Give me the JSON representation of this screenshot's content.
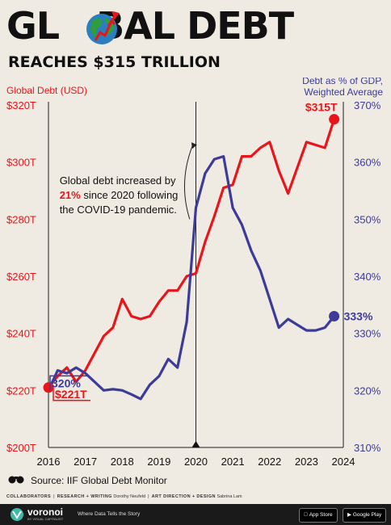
{
  "header": {
    "title_part1": "GL",
    "title_part2": "BAL DEBT",
    "subtitle": "REACHES $315 TRILLION"
  },
  "chart_data": {
    "type": "line",
    "left_axis_label": "Global Debt (USD)",
    "right_axis_label_line1": "Debt as % of GDP,",
    "right_axis_label_line2": "Weighted Average",
    "x_ticks": [
      "2016",
      "2017",
      "2018",
      "2019",
      "2020",
      "2021",
      "2022",
      "2023",
      "2024"
    ],
    "x_range": [
      2016,
      2024
    ],
    "left_ylim": [
      200,
      320
    ],
    "left_ticks": [
      "$200T",
      "$220T",
      "$240T",
      "$260T",
      "$280T",
      "$300T",
      "$320T"
    ],
    "left_tick_values": [
      200,
      220,
      240,
      260,
      280,
      300,
      320
    ],
    "right_ylim": [
      310,
      370
    ],
    "right_ticks": [
      "310%",
      "320%",
      "330%",
      "340%",
      "350%",
      "360%",
      "370%"
    ],
    "right_tick_values": [
      310,
      320,
      330,
      340,
      350,
      360,
      370
    ],
    "series": [
      {
        "axis": "left",
        "color": "#e8161b",
        "x": [
          2016.0,
          2016.25,
          2016.5,
          2016.75,
          2017.0,
          2017.25,
          2017.5,
          2017.75,
          2018.0,
          2018.25,
          2018.5,
          2018.75,
          2019.0,
          2019.25,
          2019.5,
          2019.75,
          2020.0,
          2020.25,
          2020.5,
          2020.75,
          2021.0,
          2021.25,
          2021.5,
          2021.75,
          2022.0,
          2022.25,
          2022.5,
          2022.75,
          2023.0,
          2023.25,
          2023.5,
          2023.75
        ],
        "values": [
          221,
          225,
          228,
          223,
          227,
          233,
          239,
          242,
          252,
          246,
          245,
          246,
          251,
          255,
          255,
          260,
          261,
          272,
          281,
          291,
          292,
          302,
          302,
          305,
          307,
          297,
          289,
          298,
          307,
          306,
          305,
          315
        ]
      },
      {
        "axis": "right",
        "color": "#3c3b98",
        "x": [
          2016.0,
          2016.25,
          2016.5,
          2016.75,
          2017.0,
          2017.25,
          2017.5,
          2017.75,
          2018.0,
          2018.25,
          2018.5,
          2018.75,
          2019.0,
          2019.25,
          2019.5,
          2019.75,
          2020.0,
          2020.25,
          2020.5,
          2020.75,
          2021.0,
          2021.25,
          2021.5,
          2021.75,
          2022.0,
          2022.25,
          2022.5,
          2022.75,
          2023.0,
          2023.25,
          2023.5,
          2023.75
        ],
        "values": [
          320,
          323.5,
          323,
          324,
          323,
          321.5,
          320,
          320.2,
          320,
          319.3,
          318.5,
          321,
          322.5,
          325.5,
          324,
          332,
          352,
          358,
          360.5,
          361,
          352,
          349,
          344.5,
          341,
          336,
          331,
          332.5,
          331.5,
          330.5,
          330.5,
          331,
          333
        ]
      }
    ],
    "start_labels": {
      "left": "$221T",
      "right": "320%"
    },
    "end_labels": {
      "left": "$315T",
      "right": "333%"
    },
    "annotation": {
      "line1": "Global debt increased by",
      "line2_highlight": "21%",
      "line2_rest": " since 2020 following",
      "line3": "the COVID-19 pandemic."
    },
    "annotation_start_year": 2019.83,
    "annotation_start_value": 280,
    "annotation_end_year": 2019.9,
    "annotation_end_value": 305.5,
    "ref_year": 2020
  },
  "footer": {
    "source": "Source: IIF Global Debt Monitor",
    "collab_heading": "COLLABORATORS",
    "research_label": "RESEARCH + WRITING",
    "research_name": "Dorothy Neufeld",
    "art_label": "ART DIRECTION + DESIGN",
    "art_name": "Sabrina Lam"
  },
  "bottom_bar": {
    "brand": "voronoi",
    "brand_sub": "BY VISUAL CAPITALIST",
    "tagline": "Where Data Tells the Story",
    "app_store": "App Store",
    "google_play": "Google Play"
  }
}
